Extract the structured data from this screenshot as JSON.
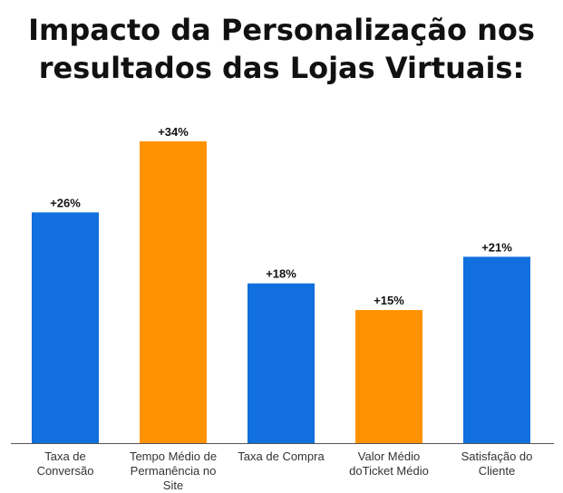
{
  "chart_data": {
    "type": "bar",
    "title_lines": [
      "Impacto da Personalização nos",
      "resultados das Lojas Virtuais:"
    ],
    "categories": [
      [
        "Taxa de",
        "Conversão"
      ],
      [
        "Tempo Médio de",
        "Permanência no",
        "Site"
      ],
      [
        "Taxa de Compra"
      ],
      [
        "Valor Médio",
        "doTicket Médio"
      ],
      [
        "Satisfação do",
        "Cliente"
      ]
    ],
    "values": [
      26,
      34,
      18,
      15,
      21
    ],
    "value_labels": [
      "+26%",
      "+34%",
      "+18%",
      "+15%",
      "+21%"
    ],
    "bar_colors": [
      "#1170DD",
      "#FF9200",
      "#1170DD",
      "#FF9200",
      "#1170DD"
    ],
    "ylim": [
      0,
      34
    ],
    "grid": false,
    "legend": "none",
    "axis_color": "#555555",
    "title_color": "#111111"
  }
}
